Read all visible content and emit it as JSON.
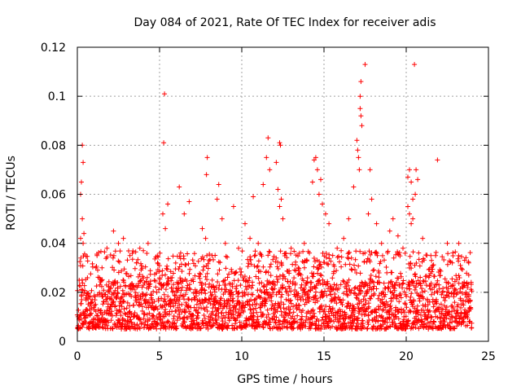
{
  "chart_data": {
    "type": "scatter",
    "title": "Day 084 of 2021, Rate Of TEC Index for receiver adis",
    "xlabel": "GPS time / hours",
    "ylabel": "ROTI / TECUs",
    "xlim": [
      0,
      25
    ],
    "ylim": [
      0,
      0.12
    ],
    "xticks": [
      0,
      5,
      10,
      15,
      20,
      25
    ],
    "yticks": [
      0,
      0.02,
      0.04,
      0.06,
      0.08,
      0.1,
      0.12
    ],
    "xtick_labels": [
      "0",
      "5",
      "10",
      "15",
      "20",
      "25"
    ],
    "ytick_labels": [
      "0",
      "0.02",
      "0.04",
      "0.06",
      "0.08",
      "0.1",
      "0.12"
    ],
    "grid": true,
    "marker": "+",
    "color": "#ff0000",
    "data_x_range": [
      0,
      24
    ],
    "baseline_band": [
      0.005,
      0.025
    ],
    "series": [
      {
        "name": "ROTI",
        "points": [
          [
            0.3,
            0.08
          ],
          [
            0.35,
            0.073
          ],
          [
            0.25,
            0.065
          ],
          [
            0.2,
            0.06
          ],
          [
            0.3,
            0.05
          ],
          [
            0.4,
            0.044
          ],
          [
            0.2,
            0.042
          ],
          [
            0.35,
            0.04
          ],
          [
            5.3,
            0.101
          ],
          [
            5.25,
            0.081
          ],
          [
            5.5,
            0.056
          ],
          [
            5.2,
            0.052
          ],
          [
            5.35,
            0.046
          ],
          [
            6.2,
            0.063
          ],
          [
            6.5,
            0.052
          ],
          [
            6.8,
            0.057
          ],
          [
            7.6,
            0.046
          ],
          [
            7.8,
            0.042
          ],
          [
            7.9,
            0.075
          ],
          [
            7.85,
            0.068
          ],
          [
            8.5,
            0.058
          ],
          [
            8.6,
            0.064
          ],
          [
            8.8,
            0.05
          ],
          [
            9.5,
            0.055
          ],
          [
            10.2,
            0.048
          ],
          [
            10.7,
            0.059
          ],
          [
            11.3,
            0.064
          ],
          [
            11.6,
            0.083
          ],
          [
            11.5,
            0.075
          ],
          [
            11.7,
            0.07
          ],
          [
            12.1,
            0.073
          ],
          [
            12.3,
            0.081
          ],
          [
            12.35,
            0.08
          ],
          [
            12.2,
            0.062
          ],
          [
            12.4,
            0.058
          ],
          [
            12.5,
            0.05
          ],
          [
            12.3,
            0.055
          ],
          [
            14.3,
            0.065
          ],
          [
            14.4,
            0.074
          ],
          [
            14.5,
            0.075
          ],
          [
            14.6,
            0.07
          ],
          [
            14.7,
            0.06
          ],
          [
            14.8,
            0.066
          ],
          [
            14.9,
            0.056
          ],
          [
            15.1,
            0.052
          ],
          [
            15.3,
            0.048
          ],
          [
            16.5,
            0.05
          ],
          [
            16.8,
            0.063
          ],
          [
            17.0,
            0.082
          ],
          [
            17.05,
            0.078
          ],
          [
            17.1,
            0.075
          ],
          [
            17.15,
            0.07
          ],
          [
            17.2,
            0.1
          ],
          [
            17.25,
            0.106
          ],
          [
            17.2,
            0.095
          ],
          [
            17.25,
            0.092
          ],
          [
            17.3,
            0.088
          ],
          [
            17.5,
            0.113
          ],
          [
            17.8,
            0.07
          ],
          [
            17.9,
            0.058
          ],
          [
            17.7,
            0.052
          ],
          [
            18.2,
            0.048
          ],
          [
            19.0,
            0.045
          ],
          [
            19.2,
            0.05
          ],
          [
            19.5,
            0.043
          ],
          [
            20.1,
            0.067
          ],
          [
            20.2,
            0.07
          ],
          [
            20.3,
            0.065
          ],
          [
            20.1,
            0.055
          ],
          [
            20.2,
            0.052
          ],
          [
            20.3,
            0.048
          ],
          [
            20.4,
            0.05
          ],
          [
            20.5,
            0.113
          ],
          [
            20.6,
            0.07
          ],
          [
            20.7,
            0.066
          ],
          [
            20.55,
            0.06
          ],
          [
            20.4,
            0.058
          ],
          [
            21.9,
            0.074
          ],
          [
            21.0,
            0.042
          ],
          [
            22.5,
            0.04
          ],
          [
            23.2,
            0.04
          ],
          [
            23.8,
            0.032
          ],
          [
            1.2,
            0.035
          ],
          [
            1.5,
            0.03
          ],
          [
            1.8,
            0.038
          ],
          [
            2.2,
            0.045
          ],
          [
            2.5,
            0.04
          ],
          [
            2.8,
            0.042
          ],
          [
            3.2,
            0.035
          ],
          [
            3.6,
            0.032
          ],
          [
            3.8,
            0.038
          ],
          [
            4.3,
            0.04
          ],
          [
            8.2,
            0.035
          ],
          [
            9.0,
            0.04
          ],
          [
            9.8,
            0.038
          ],
          [
            10.5,
            0.042
          ],
          [
            11.0,
            0.04
          ],
          [
            13.0,
            0.038
          ],
          [
            13.5,
            0.036
          ],
          [
            13.8,
            0.04
          ],
          [
            15.8,
            0.038
          ],
          [
            16.2,
            0.042
          ],
          [
            18.5,
            0.04
          ],
          [
            19.8,
            0.038
          ],
          [
            21.5,
            0.035
          ],
          [
            22.8,
            0.032
          ]
        ]
      }
    ]
  }
}
